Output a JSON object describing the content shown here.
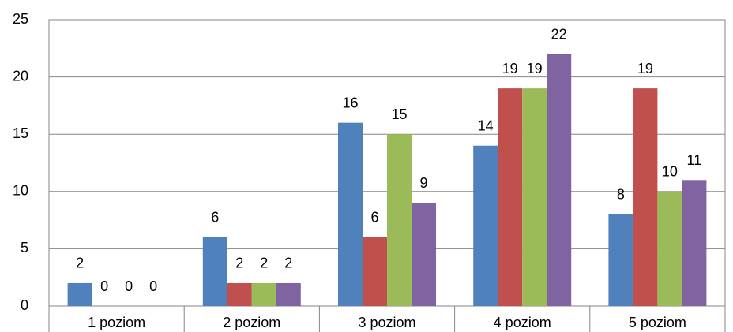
{
  "chart_data": {
    "type": "bar",
    "categories": [
      "1 poziom",
      "2 poziom",
      "3 poziom",
      "4 poziom",
      "5 poziom"
    ],
    "series": [
      {
        "color": "#4f81bd",
        "values": [
          2,
          6,
          16,
          14,
          8
        ]
      },
      {
        "color": "#c0504d",
        "values": [
          0,
          2,
          6,
          19,
          19
        ]
      },
      {
        "color": "#9bbb59",
        "values": [
          0,
          2,
          15,
          19,
          10
        ]
      },
      {
        "color": "#8064a2",
        "values": [
          0,
          2,
          9,
          22,
          11
        ]
      }
    ],
    "ylim": [
      0,
      25
    ],
    "yticks": [
      0,
      5,
      10,
      15,
      20,
      25
    ],
    "grid": true
  }
}
